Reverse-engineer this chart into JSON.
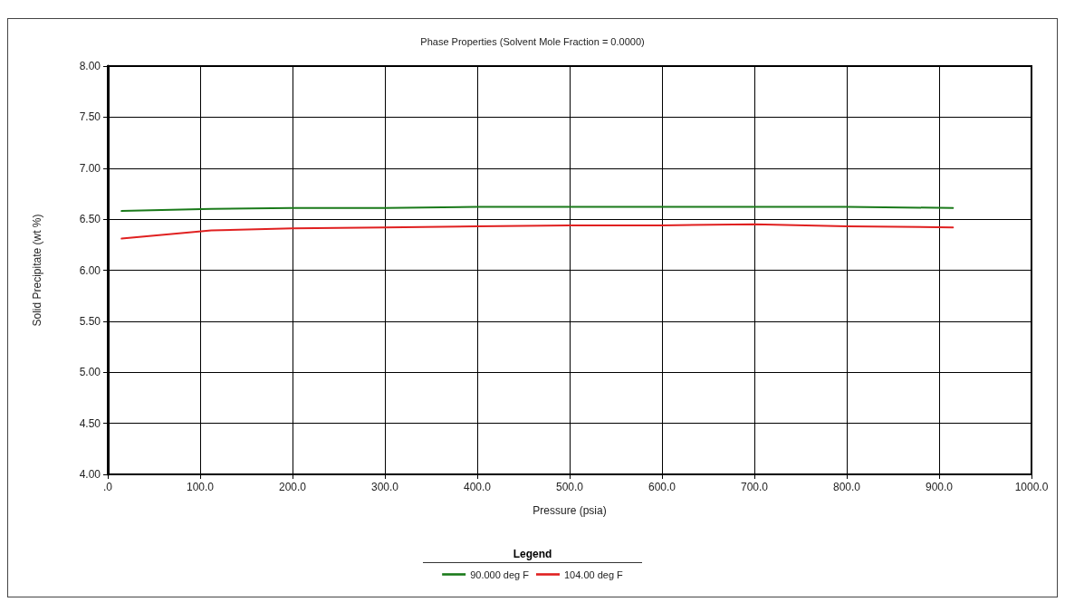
{
  "chart_data": {
    "type": "line",
    "title": "Phase Properties (Solvent Mole Fraction = 0.0000)",
    "xlabel": "Pressure (psia)",
    "ylabel": "Solid Precipitate (wt %)",
    "legend_title": "Legend",
    "x": [
      15,
      112,
      200,
      300,
      400,
      500,
      600,
      700,
      800,
      915
    ],
    "series": [
      {
        "name": "90.000 deg F",
        "color": "#1a7a1a",
        "values": [
          6.58,
          6.6,
          6.61,
          6.61,
          6.62,
          6.62,
          6.62,
          6.62,
          6.62,
          6.61
        ]
      },
      {
        "name": "104.00 deg F",
        "color": "#e02020",
        "values": [
          6.31,
          6.39,
          6.41,
          6.42,
          6.43,
          6.44,
          6.44,
          6.45,
          6.43,
          6.42
        ]
      }
    ],
    "xlim": [
      0,
      1000
    ],
    "xticks": [
      {
        "value": 0,
        "label": ".0"
      },
      {
        "value": 100,
        "label": "100.0"
      },
      {
        "value": 200,
        "label": "200.0"
      },
      {
        "value": 300,
        "label": "300.0"
      },
      {
        "value": 400,
        "label": "400.0"
      },
      {
        "value": 500,
        "label": "500.0"
      },
      {
        "value": 600,
        "label": "600.0"
      },
      {
        "value": 700,
        "label": "700.0"
      },
      {
        "value": 800,
        "label": "800.0"
      },
      {
        "value": 900,
        "label": "900.0"
      },
      {
        "value": 1000,
        "label": "1000.0"
      }
    ],
    "ylim": [
      4,
      8
    ],
    "yticks": [
      {
        "value": 4,
        "label": "4.00"
      },
      {
        "value": 4.5,
        "label": "4.50"
      },
      {
        "value": 5,
        "label": "5.00"
      },
      {
        "value": 5.5,
        "label": "5.50"
      },
      {
        "value": 6,
        "label": "6.00"
      },
      {
        "value": 6.5,
        "label": "6.50"
      },
      {
        "value": 7,
        "label": "7.00"
      },
      {
        "value": 7.5,
        "label": "7.50"
      },
      {
        "value": 8,
        "label": "8.00"
      }
    ],
    "grid": true,
    "legend": "bottom",
    "marker": "none",
    "line_style": "solid"
  }
}
